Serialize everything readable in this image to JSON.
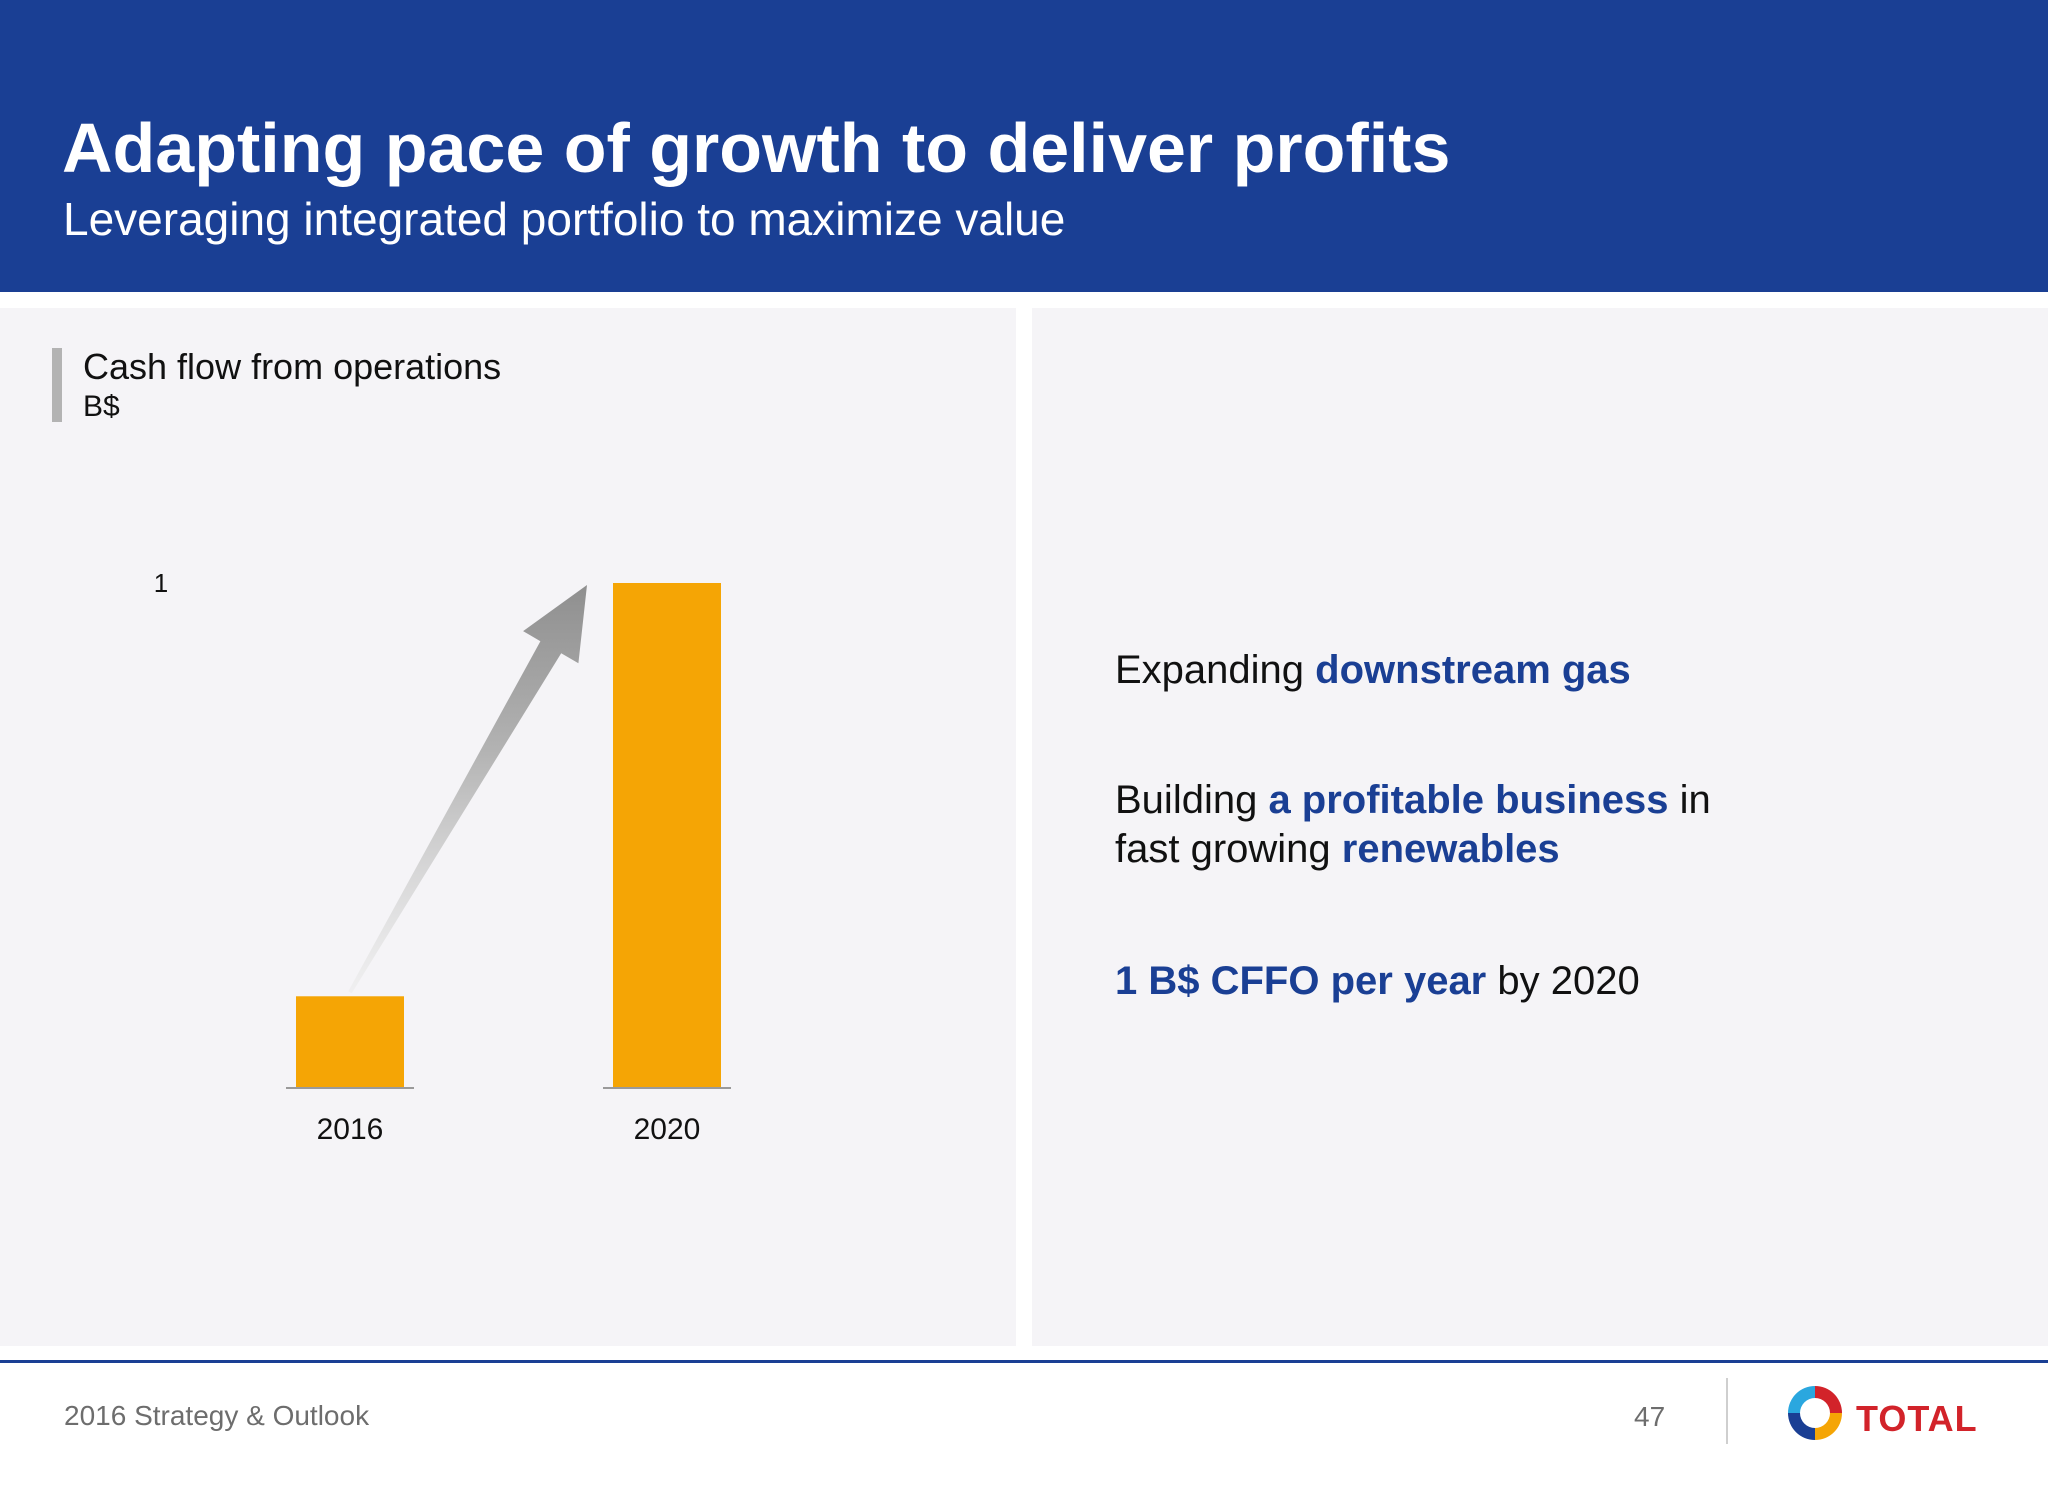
{
  "header": {
    "title": "Adapting pace of growth to deliver profits",
    "subtitle": "Leveraging integrated portfolio to maximize value"
  },
  "chart_data": {
    "type": "bar",
    "title": "Cash flow from operations",
    "ylabel": "B$",
    "categories": [
      "2016",
      "2020"
    ],
    "values": [
      0.18,
      1
    ],
    "value_labels": [
      null,
      "1"
    ],
    "ylim": [
      0,
      1
    ],
    "grid": false,
    "bar_color": "#f5a505",
    "annotation": "growth-arrow from 2016 bar to 2020 bar"
  },
  "bullets": [
    {
      "parts": [
        {
          "text": "Expanding ",
          "hl": false
        },
        {
          "text": "downstream gas",
          "hl": true
        }
      ]
    },
    {
      "parts": [
        {
          "text": "Building ",
          "hl": false
        },
        {
          "text": "a profitable business",
          "hl": true
        },
        {
          "text": " in",
          "hl": false
        }
      ]
    },
    {
      "parts": [
        {
          "text": "fast growing ",
          "hl": false
        },
        {
          "text": "renewables",
          "hl": true
        }
      ]
    },
    {
      "parts": [
        {
          "text": "1 B$ CFFO per year",
          "hl": true
        },
        {
          "text": " by 2020",
          "hl": false
        }
      ]
    }
  ],
  "footer": {
    "text": "2016 Strategy & Outlook",
    "page": "47",
    "logo_text": "TOTAL"
  },
  "colors": {
    "brand_blue": "#1a3f94",
    "bar": "#f5a505",
    "panel_bg": "#f5f4f7",
    "logo_red": "#d2232a"
  }
}
